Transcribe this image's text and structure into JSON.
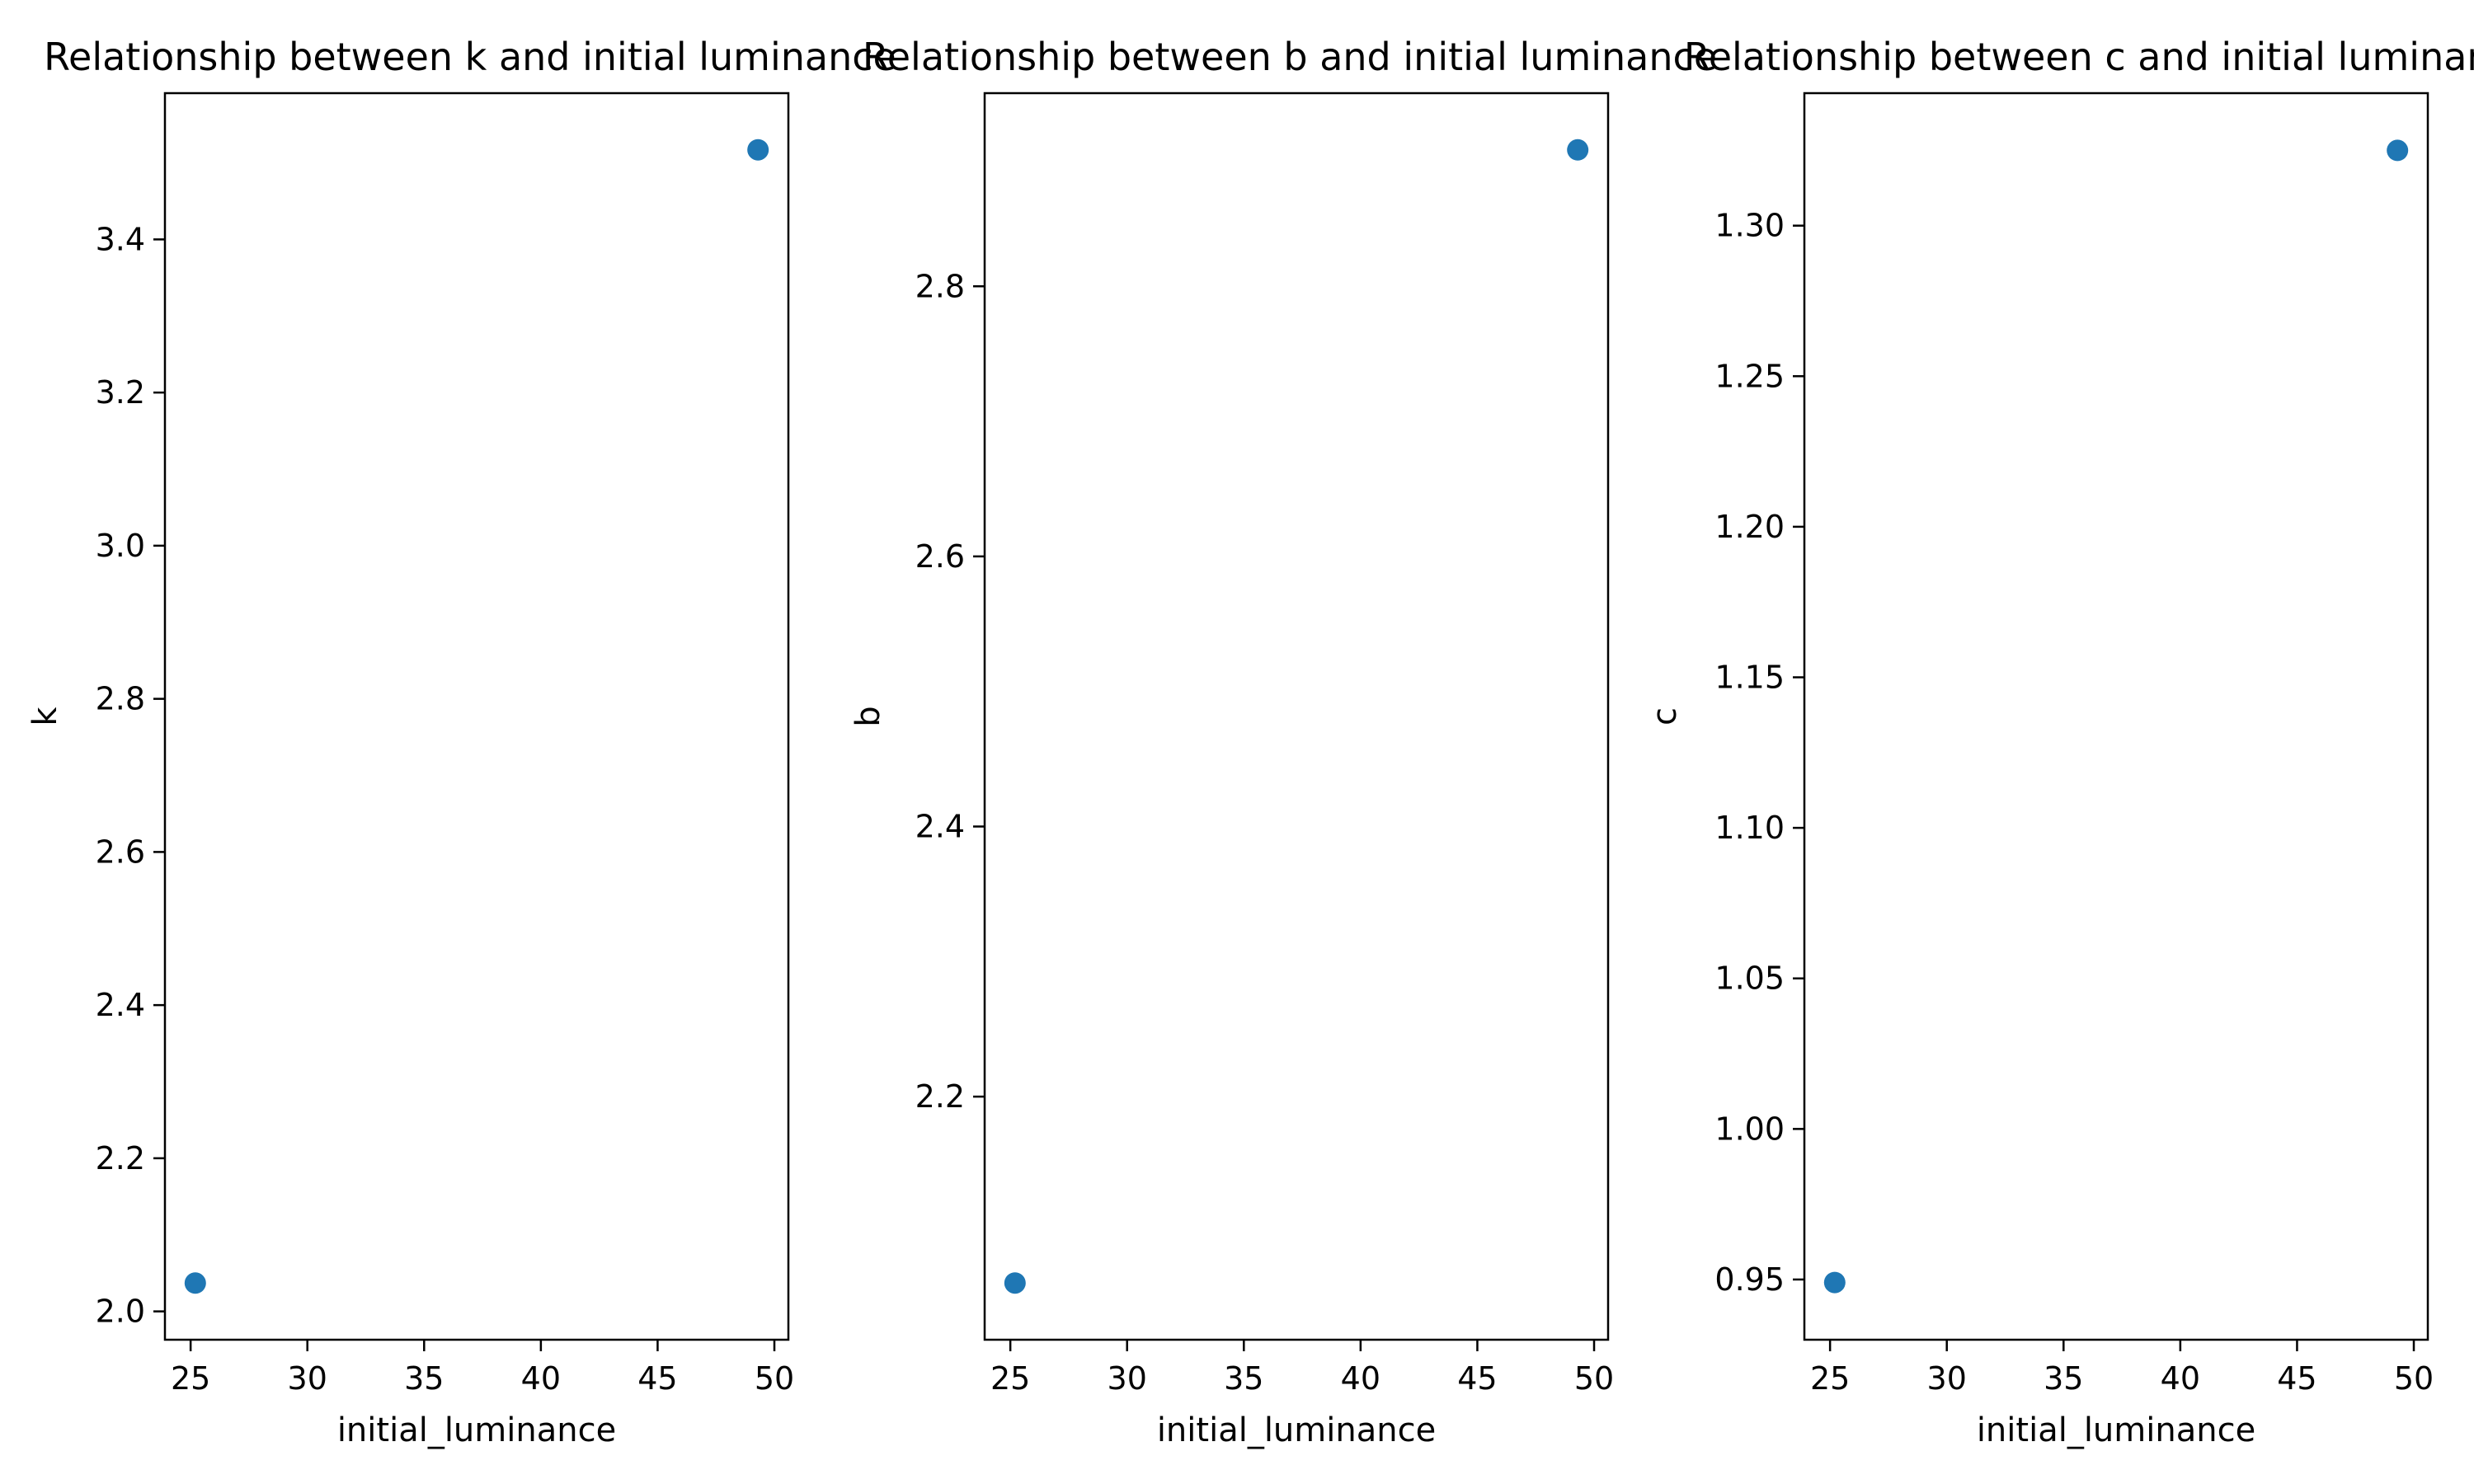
{
  "chart_data": [
    {
      "type": "scatter",
      "title": "Relationship between k and initial luminance",
      "xlabel": "initial_luminance",
      "ylabel": "k",
      "x": [
        25.2,
        49.3
      ],
      "y": [
        2.037,
        3.517
      ],
      "xlim": [
        23.9,
        50.6
      ],
      "ylim": [
        1.963,
        3.591
      ],
      "xticks": [
        25,
        30,
        35,
        40,
        45,
        50
      ],
      "xtick_labels": [
        "25",
        "30",
        "35",
        "40",
        "45",
        "50"
      ],
      "yticks": [
        2.0,
        2.2,
        2.4,
        2.6,
        2.8,
        3.0,
        3.2,
        3.4
      ],
      "ytick_labels": [
        "2.0",
        "2.2",
        "2.4",
        "2.6",
        "2.8",
        "3.0",
        "3.2",
        "3.4"
      ],
      "grid": false,
      "marker_color": "#1f77b4"
    },
    {
      "type": "scatter",
      "title": "Relationship between b and initial luminance",
      "xlabel": "initial_luminance",
      "ylabel": "b",
      "x": [
        25.2,
        49.3
      ],
      "y": [
        2.062,
        2.901
      ],
      "xlim": [
        23.9,
        50.6
      ],
      "ylim": [
        2.02,
        2.943
      ],
      "xticks": [
        25,
        30,
        35,
        40,
        45,
        50
      ],
      "xtick_labels": [
        "25",
        "30",
        "35",
        "40",
        "45",
        "50"
      ],
      "yticks": [
        2.2,
        2.4,
        2.6,
        2.8
      ],
      "ytick_labels": [
        "2.2",
        "2.4",
        "2.6",
        "2.8"
      ],
      "grid": false,
      "marker_color": "#1f77b4"
    },
    {
      "type": "scatter",
      "title": "Relationship between c and initial luminance",
      "xlabel": "initial_luminance",
      "ylabel": "c",
      "x": [
        25.2,
        49.3
      ],
      "y": [
        0.949,
        1.325
      ],
      "xlim": [
        23.9,
        50.6
      ],
      "ylim": [
        0.93,
        1.344
      ],
      "xticks": [
        25,
        30,
        35,
        40,
        45,
        50
      ],
      "xtick_labels": [
        "25",
        "30",
        "35",
        "40",
        "45",
        "50"
      ],
      "yticks": [
        0.95,
        1.0,
        1.05,
        1.1,
        1.15,
        1.2,
        1.25,
        1.3
      ],
      "ytick_labels": [
        "0.95",
        "1.00",
        "1.05",
        "1.10",
        "1.15",
        "1.20",
        "1.25",
        "1.30"
      ],
      "grid": false,
      "marker_color": "#1f77b4"
    }
  ]
}
